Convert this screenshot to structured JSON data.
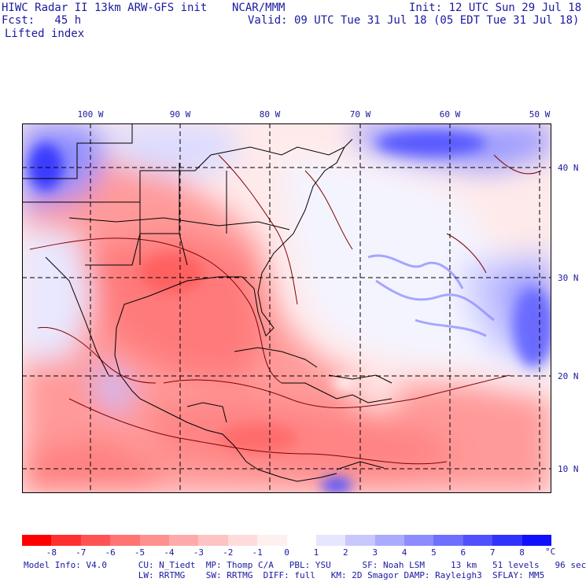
{
  "header": {
    "title": "HIWC Radar II 13km ARW-GFS init",
    "org": "NCAR/MMM",
    "init": "Init: 12 UTC Sun 29 Jul 18",
    "fcst": "Fcst:   45 h",
    "valid": "Valid: 09 UTC Tue 31 Jul 18 (05 EDT Tue 31 Jul 18)",
    "field": "Lifted index"
  },
  "map": {
    "lon_labels": [
      "100 W",
      "90 W",
      "80 W",
      "70 W",
      "60 W",
      "50 W"
    ],
    "lat_labels": [
      "40 N",
      "30 N",
      "20 N",
      "10 N"
    ]
  },
  "colorbar": {
    "ticks": [
      "-8",
      "-7",
      "-6",
      "-5",
      "-4",
      "-3",
      "-2",
      "-1",
      "0",
      "1",
      "2",
      "3",
      "4",
      "5",
      "6",
      "7",
      "8"
    ],
    "unit": "°C",
    "colors": [
      "#ff0000",
      "#ff3030",
      "#ff5353",
      "#ff7373",
      "#ff9090",
      "#ffaaaa",
      "#ffc3c3",
      "#ffdcdc",
      "#fff0f0",
      "#ffffff",
      "#e6e6ff",
      "#c8c8ff",
      "#aaaaff",
      "#8c8cff",
      "#6e6eff",
      "#5050ff",
      "#3232ff",
      "#1010ff"
    ]
  },
  "footer": {
    "line1": "Model Info: V4.0      CU: N_Tiedt  MP: Thomp C/A   PBL: YSU      SF: Noah LSM     13 km   51 levels   96 sec",
    "line2": "                      LW: RRTMG    SW: RRTMG  DIFF: full   KM: 2D Smagor DAMP: Rayleigh3  SFLAY: MM5"
  }
}
